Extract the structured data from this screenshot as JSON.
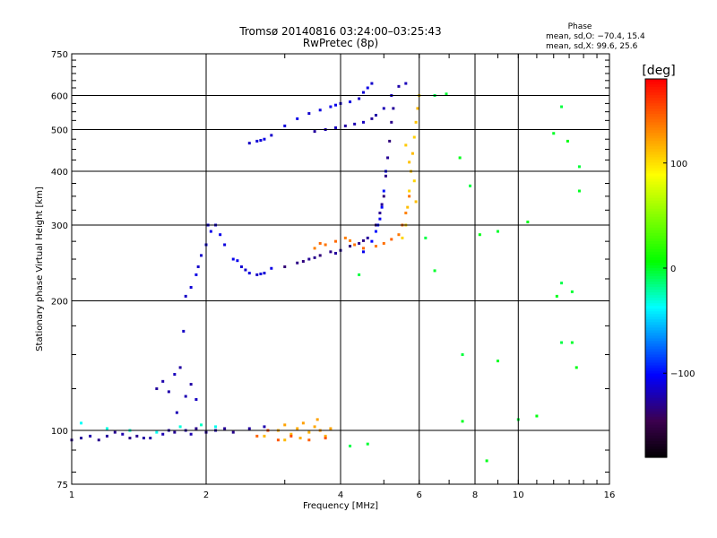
{
  "chart_data": {
    "type": "scatter",
    "title": "Tromsø 20140816 03:24:00–03:25:43",
    "subtitle": "RwPretec (8p)",
    "xlabel": "Frequency [MHz]",
    "ylabel": "Stationary phase Virtual Height [km]",
    "x_scale": "log",
    "y_scale": "log",
    "xlim": [
      1,
      16
    ],
    "ylim": [
      75,
      750
    ],
    "x_ticks": [
      1,
      2,
      4,
      6,
      8,
      10,
      16
    ],
    "x_tick_labels": [
      "1",
      "2",
      "4",
      "6",
      "8",
      "10",
      "16"
    ],
    "y_ticks": [
      75,
      100,
      200,
      300,
      400,
      500,
      600,
      750
    ],
    "y_tick_labels": [
      "75",
      "100",
      "200",
      "300",
      "400",
      "500",
      "600",
      "750"
    ],
    "grid": true,
    "stats": {
      "heading": "Phase",
      "line_o": "mean, sd,O: −70.4, 15.4",
      "line_x": "mean, sd,X:  99.6, 25.6"
    },
    "colorbar": {
      "label": "[deg]",
      "range": [
        -180,
        180
      ],
      "ticks": [
        100,
        0,
        -100
      ],
      "tick_labels": [
        "100",
        "0",
        "−100"
      ],
      "colormap": "rainbow"
    },
    "series": [
      {
        "trace": "low-E",
        "color_deg": -125,
        "points": [
          [
            1.0,
            95
          ],
          [
            1.05,
            96
          ],
          [
            1.1,
            97
          ],
          [
            1.15,
            95
          ],
          [
            1.2,
            97
          ],
          [
            1.3,
            98
          ],
          [
            1.4,
            97
          ],
          [
            1.5,
            96
          ],
          [
            1.6,
            98
          ],
          [
            1.7,
            99
          ],
          [
            1.8,
            100
          ],
          [
            1.9,
            101
          ],
          [
            2.0,
            99
          ],
          [
            2.1,
            100
          ],
          [
            2.3,
            99
          ],
          [
            2.5,
            101
          ],
          [
            2.7,
            102
          ],
          [
            1.25,
            99
          ],
          [
            1.45,
            96
          ],
          [
            1.85,
            98
          ],
          [
            2.2,
            101
          ],
          [
            1.65,
            100
          ],
          [
            1.35,
            96
          ]
        ]
      },
      {
        "trace": "low-E-x",
        "color_deg": -30,
        "points": [
          [
            1.05,
            104
          ],
          [
            1.2,
            101
          ],
          [
            1.35,
            100
          ],
          [
            1.55,
            99
          ],
          [
            1.75,
            102
          ],
          [
            1.95,
            103
          ],
          [
            2.1,
            102
          ]
        ]
      },
      {
        "trace": "spread-low",
        "color_deg": 120,
        "points": [
          [
            2.7,
            97
          ],
          [
            2.9,
            100
          ],
          [
            3.0,
            103
          ],
          [
            3.1,
            98
          ],
          [
            3.2,
            101
          ],
          [
            3.3,
            104
          ],
          [
            3.4,
            99
          ],
          [
            3.5,
            102
          ],
          [
            3.6,
            100
          ],
          [
            3.7,
            97
          ],
          [
            3.8,
            101
          ],
          [
            3.0,
            95
          ],
          [
            3.25,
            96
          ],
          [
            3.55,
            106
          ]
        ]
      },
      {
        "trace": "spread-low-orange",
        "color_deg": 150,
        "points": [
          [
            2.6,
            97
          ],
          [
            2.9,
            95
          ],
          [
            3.1,
            97
          ],
          [
            3.4,
            95
          ],
          [
            3.7,
            96
          ],
          [
            2.75,
            100
          ]
        ]
      },
      {
        "trace": "sporadic-column",
        "color_deg": -120,
        "points": [
          [
            1.55,
            125
          ],
          [
            1.6,
            130
          ],
          [
            1.7,
            135
          ],
          [
            1.75,
            140
          ],
          [
            1.8,
            120
          ],
          [
            1.9,
            118
          ],
          [
            1.85,
            128
          ],
          [
            1.72,
            110
          ],
          [
            1.78,
            170
          ],
          [
            1.65,
            123
          ]
        ]
      },
      {
        "trace": "F1-lower",
        "color_deg": -110,
        "points": [
          [
            1.8,
            205
          ],
          [
            1.85,
            215
          ],
          [
            1.9,
            230
          ],
          [
            1.95,
            255
          ],
          [
            2.0,
            270
          ],
          [
            2.05,
            290
          ],
          [
            2.1,
            300
          ],
          [
            2.2,
            270
          ],
          [
            2.3,
            250
          ],
          [
            2.4,
            240
          ],
          [
            2.5,
            232
          ],
          [
            2.6,
            230
          ],
          [
            2.7,
            232
          ],
          [
            2.8,
            238
          ],
          [
            1.92,
            240
          ],
          [
            2.02,
            300
          ],
          [
            2.15,
            285
          ],
          [
            2.45,
            236
          ],
          [
            2.65,
            231
          ],
          [
            2.35,
            248
          ]
        ]
      },
      {
        "trace": "F2-o-main",
        "color_deg": -130,
        "points": [
          [
            3.0,
            240
          ],
          [
            3.2,
            245
          ],
          [
            3.4,
            250
          ],
          [
            3.6,
            255
          ],
          [
            3.8,
            260
          ],
          [
            4.0,
            262
          ],
          [
            4.2,
            268
          ],
          [
            4.4,
            272
          ],
          [
            4.6,
            280
          ],
          [
            4.8,
            300
          ],
          [
            4.9,
            320
          ],
          [
            5.0,
            350
          ],
          [
            5.05,
            390
          ],
          [
            5.1,
            430
          ],
          [
            5.15,
            470
          ],
          [
            5.2,
            520
          ],
          [
            5.25,
            560
          ],
          [
            3.3,
            247
          ],
          [
            3.5,
            252
          ],
          [
            3.9,
            258
          ],
          [
            4.5,
            276
          ],
          [
            4.95,
            335
          ]
        ]
      },
      {
        "trace": "F2-o-inner",
        "color_deg": -100,
        "points": [
          [
            4.5,
            260
          ],
          [
            4.7,
            275
          ],
          [
            4.8,
            290
          ],
          [
            4.9,
            310
          ],
          [
            4.95,
            330
          ],
          [
            5.0,
            360
          ],
          [
            5.05,
            400
          ],
          [
            4.85,
            300
          ]
        ]
      },
      {
        "trace": "F2-x",
        "color_deg": 140,
        "points": [
          [
            3.5,
            265
          ],
          [
            3.7,
            270
          ],
          [
            3.9,
            275
          ],
          [
            4.1,
            280
          ],
          [
            4.3,
            270
          ],
          [
            4.5,
            265
          ],
          [
            4.8,
            268
          ],
          [
            5.0,
            272
          ],
          [
            5.2,
            278
          ],
          [
            5.4,
            285
          ],
          [
            5.5,
            300
          ],
          [
            5.6,
            320
          ],
          [
            5.7,
            350
          ],
          [
            3.6,
            272
          ],
          [
            4.2,
            276
          ]
        ]
      },
      {
        "trace": "F2-x-yellow",
        "color_deg": 110,
        "points": [
          [
            5.5,
            280
          ],
          [
            5.6,
            300
          ],
          [
            5.65,
            330
          ],
          [
            5.7,
            360
          ],
          [
            5.75,
            400
          ],
          [
            5.8,
            440
          ],
          [
            5.85,
            480
          ],
          [
            5.9,
            520
          ],
          [
            5.95,
            560
          ],
          [
            6.0,
            600
          ],
          [
            5.7,
            420
          ],
          [
            5.85,
            380
          ],
          [
            5.6,
            460
          ],
          [
            5.9,
            340
          ]
        ]
      },
      {
        "trace": "upper-band",
        "color_deg": -110,
        "points": [
          [
            2.5,
            465
          ],
          [
            2.6,
            470
          ],
          [
            2.7,
            475
          ],
          [
            2.8,
            485
          ],
          [
            3.0,
            510
          ],
          [
            3.2,
            530
          ],
          [
            3.4,
            545
          ],
          [
            3.6,
            555
          ],
          [
            3.8,
            565
          ],
          [
            4.0,
            575
          ],
          [
            4.2,
            580
          ],
          [
            4.4,
            590
          ],
          [
            4.5,
            610
          ],
          [
            4.6,
            625
          ],
          [
            4.7,
            640
          ],
          [
            2.65,
            472
          ],
          [
            3.9,
            570
          ]
        ]
      },
      {
        "trace": "upper-band-2",
        "color_deg": -120,
        "points": [
          [
            3.5,
            495
          ],
          [
            3.7,
            500
          ],
          [
            3.9,
            505
          ],
          [
            4.1,
            510
          ],
          [
            4.3,
            515
          ],
          [
            4.5,
            520
          ],
          [
            4.8,
            540
          ],
          [
            5.0,
            560
          ],
          [
            5.2,
            600
          ],
          [
            5.4,
            630
          ],
          [
            5.6,
            640
          ],
          [
            4.7,
            530
          ]
        ]
      },
      {
        "trace": "scattered",
        "color_deg": 0,
        "points": [
          [
            6.5,
            600
          ],
          [
            6.9,
            605
          ],
          [
            7.4,
            430
          ],
          [
            7.8,
            370
          ],
          [
            9.0,
            290
          ],
          [
            10.5,
            305
          ],
          [
            12.5,
            565
          ],
          [
            12.0,
            490
          ],
          [
            12.9,
            470
          ],
          [
            13.7,
            410
          ],
          [
            13.7,
            360
          ],
          [
            12.5,
            220
          ],
          [
            13.2,
            210
          ],
          [
            12.2,
            205
          ],
          [
            12.5,
            160
          ],
          [
            13.2,
            160
          ],
          [
            13.5,
            140
          ],
          [
            7.5,
            150
          ],
          [
            9.0,
            145
          ],
          [
            11.0,
            108
          ],
          [
            10.0,
            106
          ],
          [
            7.5,
            105
          ],
          [
            4.2,
            92
          ],
          [
            4.6,
            93
          ],
          [
            8.5,
            85
          ],
          [
            6.2,
            280
          ],
          [
            6.5,
            235
          ],
          [
            8.2,
            285
          ],
          [
            4.4,
            230
          ]
        ]
      }
    ]
  }
}
